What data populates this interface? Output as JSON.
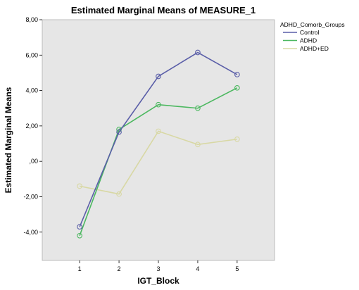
{
  "chart_data": {
    "type": "line",
    "title": "Estimated Marginal Means of MEASURE_1",
    "xlabel": "IGT_Block",
    "ylabel": "Estimated Marginal Means",
    "x": [
      1,
      2,
      3,
      4,
      5
    ],
    "x_tick_labels": [
      "1",
      "2",
      "3",
      "4",
      "5"
    ],
    "ylim": [
      -5.6,
      8
    ],
    "y_ticks": [
      -4,
      -2,
      0,
      2,
      4,
      6,
      8
    ],
    "y_tick_labels": [
      "-4,00",
      "-2,00",
      ",00",
      "2,00",
      "4,00",
      "6,00",
      "8,00"
    ],
    "grid": false,
    "plot_background": "#e6e6e6",
    "legend": {
      "title": "ADHD_Comorb_Groups",
      "placement": "right"
    },
    "series": [
      {
        "name": "Control",
        "color": "#5a5ea8",
        "values": [
          -3.7,
          1.65,
          4.8,
          6.15,
          4.9
        ]
      },
      {
        "name": "ADHD",
        "color": "#4cb860",
        "values": [
          -4.2,
          1.8,
          3.2,
          3.0,
          4.15
        ]
      },
      {
        "name": "ADHD+ED",
        "color": "#d8d8a4",
        "values": [
          -1.4,
          -1.85,
          1.7,
          0.95,
          1.25
        ]
      }
    ]
  }
}
